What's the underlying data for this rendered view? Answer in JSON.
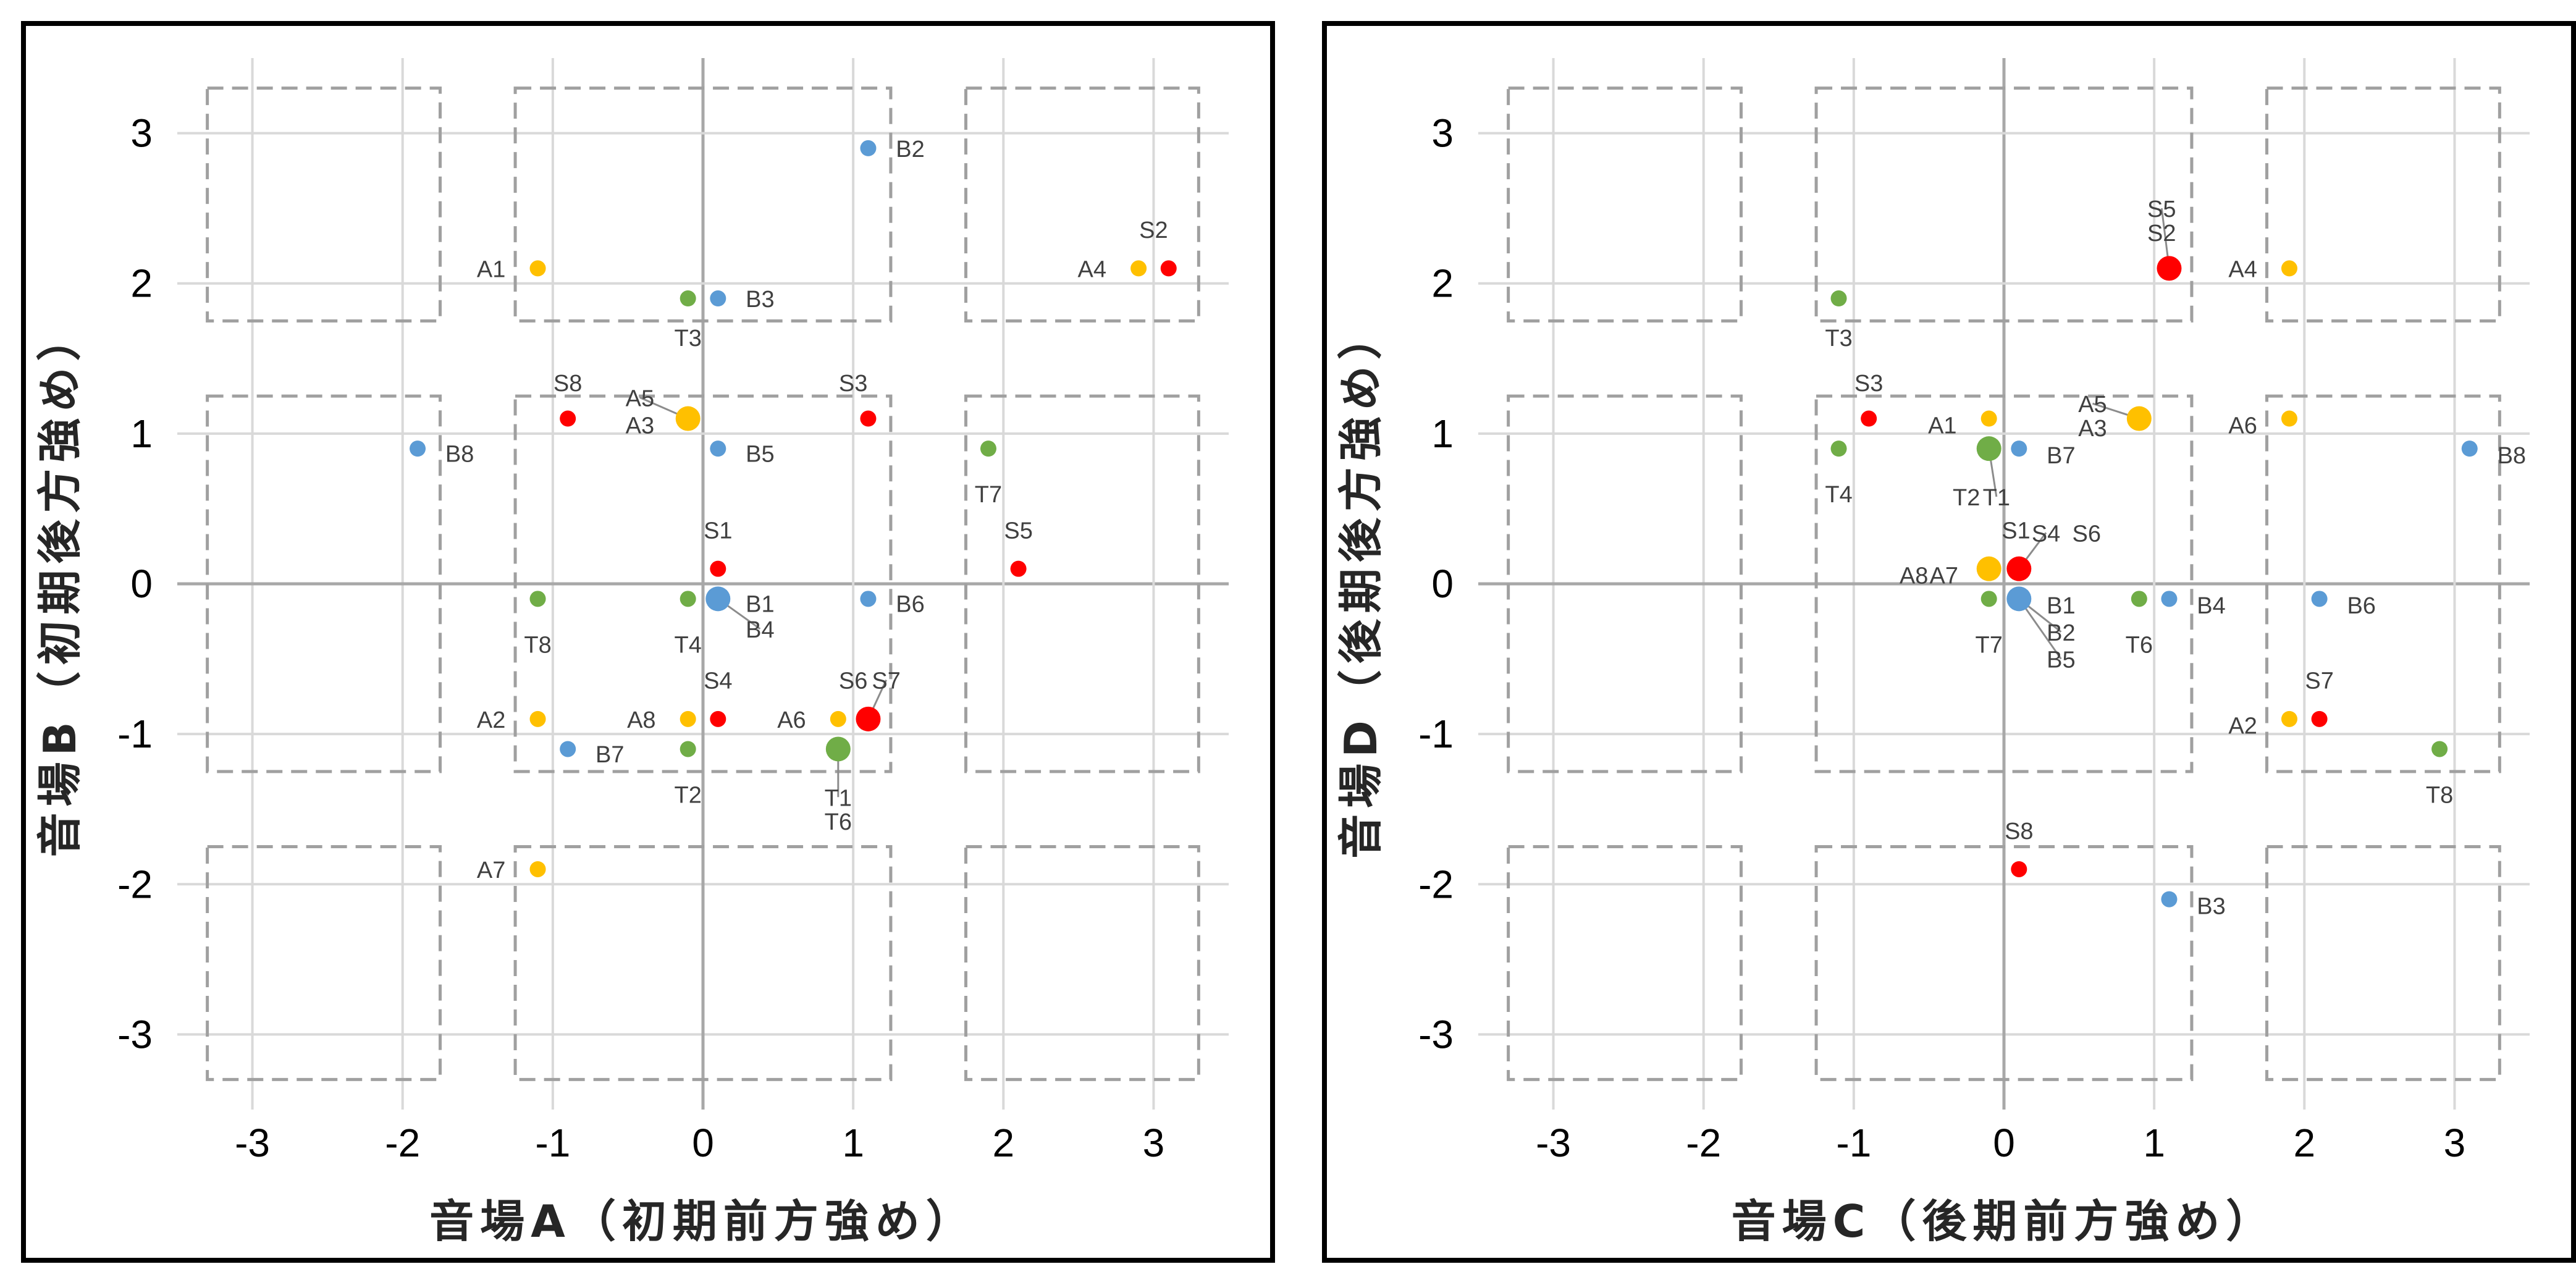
{
  "colors": {
    "A": "#FFC000",
    "B": "#5B9BD5",
    "S": "#FF0000",
    "T": "#70AD47"
  },
  "chart_data": [
    {
      "type": "scatter",
      "xlabel": "音場A（初期前方強め）",
      "ylabel": "音場B（初期後方強め）",
      "xlim": [
        -3.5,
        3.5
      ],
      "ylim": [
        -3.5,
        3.5
      ],
      "xticks": [
        "-3",
        "-2",
        "-1",
        "0",
        "1",
        "2",
        "3"
      ],
      "yticks": [
        "3",
        "2",
        "1",
        "0",
        "-1",
        "-2",
        "-3"
      ],
      "grid": true,
      "regions": [
        [
          -3.3,
          -1.75,
          1.75,
          3.3
        ],
        [
          -1.25,
          1.25,
          1.75,
          3.3
        ],
        [
          1.75,
          3.3,
          1.75,
          3.3
        ],
        [
          -3.3,
          -1.75,
          -1.25,
          1.25
        ],
        [
          -1.25,
          1.25,
          -1.25,
          1.25
        ],
        [
          1.75,
          3.3,
          -1.25,
          1.25
        ],
        [
          -3.3,
          -1.75,
          -3.3,
          -1.75
        ],
        [
          -1.25,
          1.25,
          -3.3,
          -1.75
        ],
        [
          1.75,
          3.3,
          -3.3,
          -1.75
        ]
      ],
      "points": [
        {
          "g": "A",
          "x": -1.1,
          "y": 2.1,
          "s": "n"
        },
        {
          "g": "A",
          "x": -0.1,
          "y": 1.1,
          "s": "b"
        },
        {
          "g": "A",
          "x": 2.9,
          "y": 2.1,
          "s": "n"
        },
        {
          "g": "A",
          "x": -1.1,
          "y": -0.9,
          "s": "n"
        },
        {
          "g": "A",
          "x": 0.9,
          "y": -0.9,
          "s": "n"
        },
        {
          "g": "A",
          "x": -1.1,
          "y": -1.9,
          "s": "n"
        },
        {
          "g": "A",
          "x": -0.1,
          "y": -0.9,
          "s": "n"
        },
        {
          "g": "B",
          "x": 1.1,
          "y": 2.9,
          "s": "n"
        },
        {
          "g": "B",
          "x": 0.1,
          "y": 1.9,
          "s": "n"
        },
        {
          "g": "B",
          "x": 0.1,
          "y": 0.9,
          "s": "n"
        },
        {
          "g": "B",
          "x": -1.9,
          "y": 0.9,
          "s": "n"
        },
        {
          "g": "B",
          "x": 0.1,
          "y": -0.1,
          "s": "b"
        },
        {
          "g": "B",
          "x": 1.1,
          "y": -0.1,
          "s": "n"
        },
        {
          "g": "B",
          "x": -0.9,
          "y": -1.1,
          "s": "n"
        },
        {
          "g": "S",
          "x": 3.1,
          "y": 2.1,
          "s": "n"
        },
        {
          "g": "S",
          "x": -0.9,
          "y": 1.1,
          "s": "n"
        },
        {
          "g": "S",
          "x": 1.1,
          "y": 1.1,
          "s": "n"
        },
        {
          "g": "S",
          "x": 0.1,
          "y": 0.1,
          "s": "n"
        },
        {
          "g": "S",
          "x": 2.1,
          "y": 0.1,
          "s": "n"
        },
        {
          "g": "S",
          "x": 0.1,
          "y": -0.9,
          "s": "n"
        },
        {
          "g": "S",
          "x": 1.1,
          "y": -0.9,
          "s": "b"
        },
        {
          "g": "T",
          "x": -0.1,
          "y": 1.9,
          "s": "n"
        },
        {
          "g": "T",
          "x": 1.9,
          "y": 0.9,
          "s": "n"
        },
        {
          "g": "T",
          "x": -1.1,
          "y": -0.1,
          "s": "n"
        },
        {
          "g": "T",
          "x": -0.1,
          "y": -0.1,
          "s": "n"
        },
        {
          "g": "T",
          "x": -0.1,
          "y": -1.1,
          "s": "n"
        },
        {
          "g": "T",
          "x": 0.9,
          "y": -1.1,
          "s": "b"
        }
      ],
      "labels": [
        {
          "t": "A1",
          "x": -1.41,
          "y": 2.1,
          "a": "middle"
        },
        {
          "t": "A5",
          "x": -0.42,
          "y": 1.24,
          "a": "middle",
          "lx": -0.1,
          "ly": 1.1
        },
        {
          "t": "A3",
          "x": -0.42,
          "y": 1.06,
          "a": "middle"
        },
        {
          "t": "A4",
          "x": 2.59,
          "y": 2.1,
          "a": "middle"
        },
        {
          "t": "A2",
          "x": -1.41,
          "y": -0.9,
          "a": "middle"
        },
        {
          "t": "A6",
          "x": 0.59,
          "y": -0.9,
          "a": "middle"
        },
        {
          "t": "A7",
          "x": -1.41,
          "y": -1.9,
          "a": "middle"
        },
        {
          "t": "A8",
          "x": -0.41,
          "y": -0.9,
          "a": "middle"
        },
        {
          "t": "B2",
          "x": 1.38,
          "y": 2.9,
          "a": "middle"
        },
        {
          "t": "B3",
          "x": 0.38,
          "y": 1.9,
          "a": "middle"
        },
        {
          "t": "B5",
          "x": 0.38,
          "y": 0.87,
          "a": "middle"
        },
        {
          "t": "B8",
          "x": -1.62,
          "y": 0.87,
          "a": "middle"
        },
        {
          "t": "B1",
          "x": 0.38,
          "y": -0.13,
          "a": "middle"
        },
        {
          "t": "B4",
          "x": 0.38,
          "y": -0.3,
          "a": "middle",
          "lx": 0.1,
          "ly": -0.1
        },
        {
          "t": "B6",
          "x": 1.38,
          "y": -0.13,
          "a": "middle"
        },
        {
          "t": "B7",
          "x": -0.62,
          "y": -1.13,
          "a": "middle"
        },
        {
          "t": "S2",
          "x": 3.0,
          "y": 2.36,
          "a": "middle"
        },
        {
          "t": "S8",
          "x": -0.9,
          "y": 1.34,
          "a": "middle"
        },
        {
          "t": "S3",
          "x": 1.0,
          "y": 1.34,
          "a": "middle"
        },
        {
          "t": "S1",
          "x": 0.1,
          "y": 0.36,
          "a": "middle"
        },
        {
          "t": "S5",
          "x": 2.1,
          "y": 0.36,
          "a": "middle"
        },
        {
          "t": "S4",
          "x": 0.1,
          "y": -0.64,
          "a": "middle"
        },
        {
          "t": "S6",
          "x": 1.0,
          "y": -0.64,
          "a": "middle"
        },
        {
          "t": "S7",
          "x": 1.22,
          "y": -0.64,
          "a": "middle",
          "lx": 1.1,
          "ly": -0.9
        },
        {
          "t": "T3",
          "x": -0.1,
          "y": 1.64,
          "a": "middle"
        },
        {
          "t": "T7",
          "x": 1.9,
          "y": 0.6,
          "a": "middle"
        },
        {
          "t": "T8",
          "x": -1.1,
          "y": -0.4,
          "a": "middle"
        },
        {
          "t": "T4",
          "x": -0.1,
          "y": -0.4,
          "a": "middle"
        },
        {
          "t": "T2",
          "x": -0.1,
          "y": -1.4,
          "a": "middle"
        },
        {
          "t": "T1",
          "x": 0.9,
          "y": -1.42,
          "a": "middle",
          "lx": 0.9,
          "ly": -1.1
        },
        {
          "t": "T6",
          "x": 0.9,
          "y": -1.58,
          "a": "middle"
        }
      ]
    },
    {
      "type": "scatter",
      "xlabel": "音場C（後期前方強め）",
      "ylabel": "音場D（後期後方強め）",
      "xlim": [
        -3.5,
        3.5
      ],
      "ylim": [
        -3.5,
        3.5
      ],
      "xticks": [
        "-3",
        "-2",
        "-1",
        "0",
        "1",
        "2",
        "3"
      ],
      "yticks": [
        "3",
        "2",
        "1",
        "0",
        "-1",
        "-2",
        "-3"
      ],
      "grid": true,
      "regions": [
        [
          -3.3,
          -1.75,
          1.75,
          3.3
        ],
        [
          -1.25,
          1.25,
          1.75,
          3.3
        ],
        [
          1.75,
          3.3,
          1.75,
          3.3
        ],
        [
          -3.3,
          -1.75,
          -1.25,
          1.25
        ],
        [
          -1.25,
          1.25,
          -1.25,
          1.25
        ],
        [
          1.75,
          3.3,
          -1.25,
          1.25
        ],
        [
          -3.3,
          -1.75,
          -3.3,
          -1.75
        ],
        [
          -1.25,
          1.25,
          -3.3,
          -1.75
        ],
        [
          1.75,
          3.3,
          -3.3,
          -1.75
        ]
      ],
      "points": [
        {
          "g": "A",
          "x": 1.9,
          "y": 2.1,
          "s": "n"
        },
        {
          "g": "A",
          "x": -0.1,
          "y": 1.1,
          "s": "n"
        },
        {
          "g": "A",
          "x": 0.9,
          "y": 1.1,
          "s": "b"
        },
        {
          "g": "A",
          "x": 1.9,
          "y": 1.1,
          "s": "n"
        },
        {
          "g": "A",
          "x": -0.1,
          "y": 0.1,
          "s": "b"
        },
        {
          "g": "A",
          "x": 1.9,
          "y": -0.9,
          "s": "n"
        },
        {
          "g": "B",
          "x": 0.1,
          "y": 0.9,
          "s": "n"
        },
        {
          "g": "B",
          "x": 3.1,
          "y": 0.9,
          "s": "n"
        },
        {
          "g": "B",
          "x": 0.1,
          "y": -0.1,
          "s": "b"
        },
        {
          "g": "B",
          "x": 1.1,
          "y": -0.1,
          "s": "n"
        },
        {
          "g": "B",
          "x": 2.1,
          "y": -0.1,
          "s": "n"
        },
        {
          "g": "B",
          "x": 1.1,
          "y": -2.1,
          "s": "n"
        },
        {
          "g": "S",
          "x": 1.1,
          "y": 2.1,
          "s": "b"
        },
        {
          "g": "S",
          "x": -0.9,
          "y": 1.1,
          "s": "n"
        },
        {
          "g": "S",
          "x": 0.1,
          "y": 0.1,
          "s": "b"
        },
        {
          "g": "S",
          "x": 2.1,
          "y": -0.9,
          "s": "n"
        },
        {
          "g": "S",
          "x": 0.1,
          "y": -1.9,
          "s": "n"
        },
        {
          "g": "T",
          "x": -1.1,
          "y": 1.9,
          "s": "n"
        },
        {
          "g": "T",
          "x": -1.1,
          "y": 0.9,
          "s": "n"
        },
        {
          "g": "T",
          "x": -0.1,
          "y": 0.9,
          "s": "b"
        },
        {
          "g": "T",
          "x": -0.1,
          "y": -0.1,
          "s": "n"
        },
        {
          "g": "T",
          "x": 0.9,
          "y": -0.1,
          "s": "n"
        },
        {
          "g": "T",
          "x": 2.9,
          "y": -1.1,
          "s": "n"
        }
      ],
      "labels": [
        {
          "t": "A4",
          "x": 1.59,
          "y": 2.1,
          "a": "middle"
        },
        {
          "t": "A1",
          "x": -0.41,
          "y": 1.06,
          "a": "middle"
        },
        {
          "t": "A5",
          "x": 0.59,
          "y": 1.2,
          "a": "middle",
          "lx": 0.9,
          "ly": 1.1
        },
        {
          "t": "A3",
          "x": 0.59,
          "y": 1.04,
          "a": "middle"
        },
        {
          "t": "A6",
          "x": 1.59,
          "y": 1.06,
          "a": "middle"
        },
        {
          "t": "A8",
          "x": -0.6,
          "y": 0.06,
          "a": "middle"
        },
        {
          "t": "A7",
          "x": -0.4,
          "y": 0.06,
          "a": "middle"
        },
        {
          "t": "A2",
          "x": 1.59,
          "y": -0.94,
          "a": "middle"
        },
        {
          "t": "B7",
          "x": 0.38,
          "y": 0.86,
          "a": "middle"
        },
        {
          "t": "B8",
          "x": 3.38,
          "y": 0.86,
          "a": "middle"
        },
        {
          "t": "B1",
          "x": 0.38,
          "y": -0.14,
          "a": "middle"
        },
        {
          "t": "B2",
          "x": 0.38,
          "y": -0.32,
          "a": "middle",
          "lx": 0.1,
          "ly": -0.1
        },
        {
          "t": "B5",
          "x": 0.38,
          "y": -0.5,
          "a": "middle",
          "lx": 0.1,
          "ly": -0.1
        },
        {
          "t": "B4",
          "x": 1.38,
          "y": -0.14,
          "a": "middle"
        },
        {
          "t": "B6",
          "x": 2.38,
          "y": -0.14,
          "a": "middle"
        },
        {
          "t": "B3",
          "x": 1.38,
          "y": -2.14,
          "a": "middle"
        },
        {
          "t": "S5",
          "x": 1.05,
          "y": 2.5,
          "a": "middle",
          "lx": 1.1,
          "ly": 2.1
        },
        {
          "t": "S2",
          "x": 1.05,
          "y": 2.34,
          "a": "middle"
        },
        {
          "t": "S3",
          "x": -0.9,
          "y": 1.34,
          "a": "middle"
        },
        {
          "t": "S1",
          "x": 0.08,
          "y": 0.36,
          "a": "middle"
        },
        {
          "t": "S4",
          "x": 0.28,
          "y": 0.34,
          "a": "middle",
          "lx": 0.1,
          "ly": 0.1
        },
        {
          "t": "S6",
          "x": 0.55,
          "y": 0.34,
          "a": "middle"
        },
        {
          "t": "S7",
          "x": 2.1,
          "y": -0.64,
          "a": "middle"
        },
        {
          "t": "S8",
          "x": 0.1,
          "y": -1.64,
          "a": "middle"
        },
        {
          "t": "T3",
          "x": -1.1,
          "y": 1.64,
          "a": "middle"
        },
        {
          "t": "T4",
          "x": -1.1,
          "y": 0.6,
          "a": "middle"
        },
        {
          "t": "T2",
          "x": -0.25,
          "y": 0.58,
          "a": "middle"
        },
        {
          "t": "T1",
          "x": -0.05,
          "y": 0.58,
          "a": "middle",
          "lx": -0.1,
          "ly": 0.9
        },
        {
          "t": "T7",
          "x": -0.1,
          "y": -0.4,
          "a": "middle"
        },
        {
          "t": "T6",
          "x": 0.9,
          "y": -0.4,
          "a": "middle"
        },
        {
          "t": "T8",
          "x": 2.9,
          "y": -1.4,
          "a": "middle"
        }
      ]
    }
  ]
}
